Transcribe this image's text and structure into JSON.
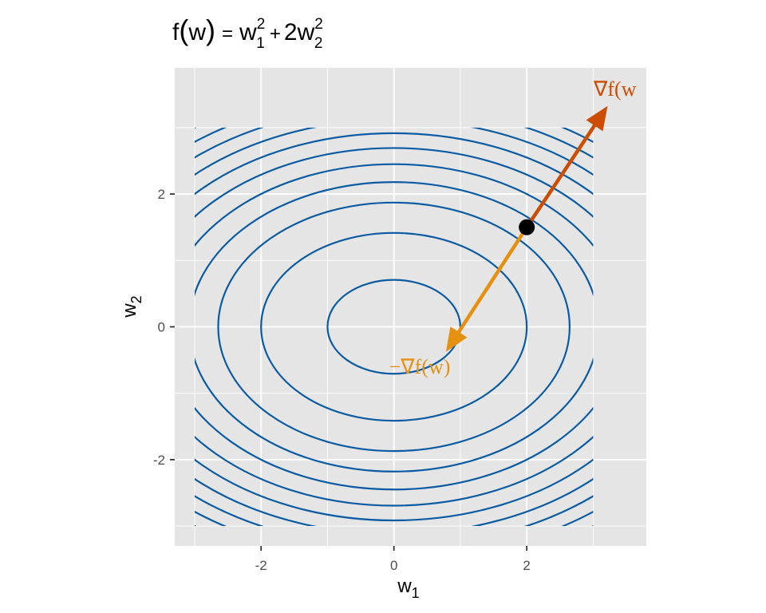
{
  "chart_data": {
    "type": "contour",
    "title": {
      "f": "f",
      "w": "w",
      "eq": "=",
      "sub1": "1",
      "sq1": "2",
      "plus": "+",
      "coef": "2",
      "sub2": "2",
      "sq2": "2"
    },
    "function": "w1^2 + 2*w2^2",
    "xlabel": {
      "base": "w",
      "sub": "1"
    },
    "ylabel": {
      "base": "w",
      "sub": "2"
    },
    "xlim": [
      -3.3,
      3.8
    ],
    "ylim": [
      -3.3,
      3.9
    ],
    "contour_domain": {
      "x": [
        -3,
        3
      ],
      "y": [
        -3,
        3
      ]
    },
    "contour_levels": [
      1,
      4,
      7,
      9.5,
      12,
      14.5,
      17,
      19.5,
      22,
      24.5,
      27
    ],
    "x_ticks": [
      {
        "value": -2,
        "label": "-2"
      },
      {
        "value": 0,
        "label": "0"
      },
      {
        "value": 2,
        "label": "2"
      }
    ],
    "y_ticks": [
      {
        "value": -2,
        "label": "-2"
      },
      {
        "value": 0,
        "label": "0"
      },
      {
        "value": 2,
        "label": "2"
      }
    ],
    "point": {
      "x": 2,
      "y": 1.5
    },
    "gradient_arrow": {
      "to": [
        3.2,
        3.3
      ],
      "label": "∇f(w"
    },
    "neg_gradient_arrow": {
      "to": [
        0.8,
        -0.35
      ],
      "label": "−∇f(w)"
    },
    "grid": true,
    "colors": {
      "panel": "#e5e5e5",
      "grid": "#ffffff",
      "contour": "#0a5ba3",
      "gradient": "#cc4c02",
      "neg_gradient": "#e69010",
      "point": "#000000"
    }
  }
}
